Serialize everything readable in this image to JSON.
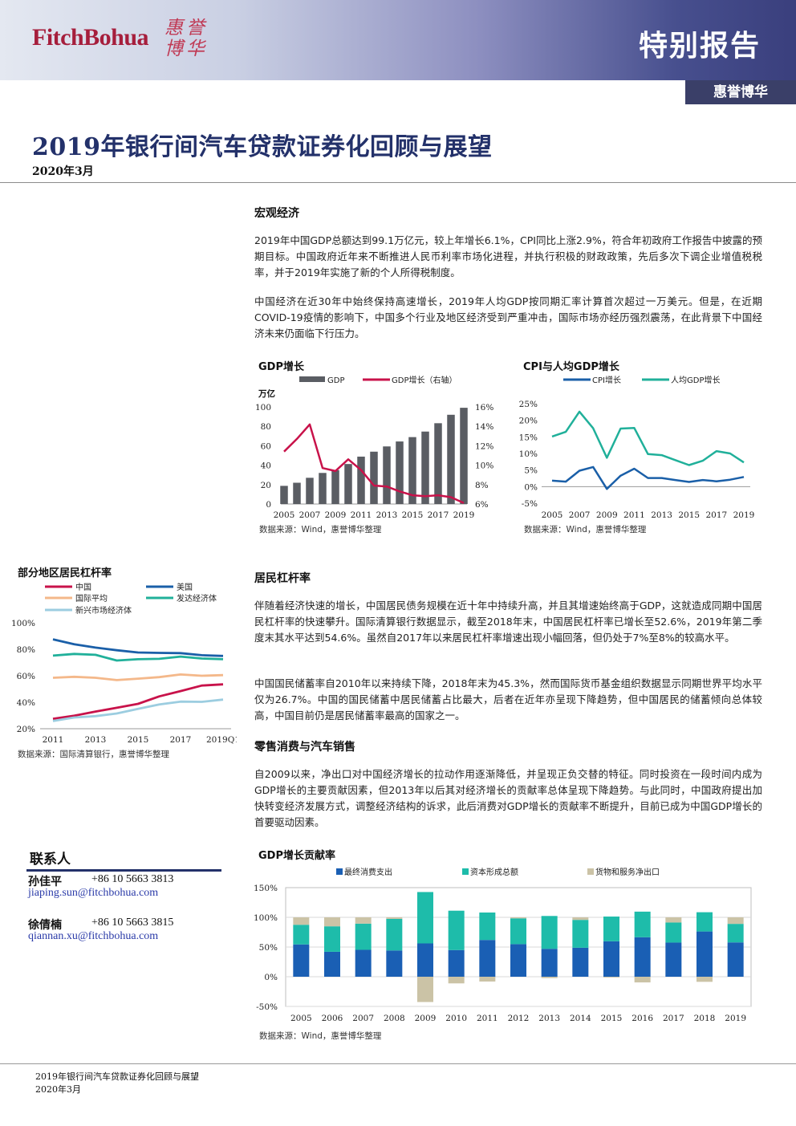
{
  "header": {
    "logo_text": "FitchBohua",
    "logo_cn": "惠誉博华",
    "report_type": "特别报告",
    "brand_tab": "惠誉博华"
  },
  "title": "2019年银行间汽车贷款证券化回顾与展望",
  "date": "2020年3月",
  "sections": {
    "macro": {
      "title": "宏观经济",
      "p1": "2019年中国GDP总额达到99.1万亿元，较上年增长6.1%，CPI同比上涨2.9%，符合年初政府工作报告中披露的预期目标。中国政府近年来不断推进人民币利率市场化进程，并执行积极的财政政策，先后多次下调企业增值税税率，并于2019年实施了新的个人所得税制度。",
      "p2": "中国经济在近30年中始终保持高速增长，2019年人均GDP按同期汇率计算首次超过一万美元。但是，在近期COVID-19疫情的影响下，中国多个行业及地区经济受到严重冲击，国际市场亦经历强烈震荡，在此背景下中国经济未来仍面临下行压力。"
    },
    "leverage": {
      "title": "居民杠杆率",
      "p1": "伴随着经济快速的增长，中国居民债务规模在近十年中持续升高，并且其增速始终高于GDP，这就造成同期中国居民杠杆率的快速攀升。国际清算银行数据显示，截至2018年末，中国居民杠杆率已增长至52.6%，2019年第二季度末其水平达到54.6%。虽然自2017年以来居民杠杆率增速出现小幅回落，但仍处于7%至8%的较高水平。",
      "p2": "中国国民储蓄率自2010年以来持续下降，2018年末为45.3%，然而国际货币基金组织数据显示同期世界平均水平仅为26.7%。中国的国民储蓄中居民储蓄占比最大，后者在近年亦呈现下降趋势，但中国居民的储蓄倾向总体较高，中国目前仍是居民储蓄率最高的国家之一。"
    },
    "retail": {
      "title": "零售消费与汽车销售",
      "p1": "自2009以来，净出口对中国经济增长的拉动作用逐渐降低，并呈现正负交替的特征。同时投资在一段时间内成为GDP增长的主要贡献因素，但2013年以后其对经济增长的贡献率总体呈现下降趋势。与此同时，中国政府提出加快转变经济发展方式，调整经济结构的诉求，此后消费对GDP增长的贡献率不断提升，目前已成为中国GDP增长的首要驱动因素。"
    }
  },
  "charts": {
    "gdp": {
      "title": "GDP增长",
      "legend_gdp": "GDP",
      "legend_growth": "GDP增长（右轴）",
      "left_unit": "万亿",
      "left_ticks": [
        "100",
        "80",
        "60",
        "40",
        "20",
        "0"
      ],
      "right_ticks": [
        "16%",
        "14%",
        "12%",
        "10%",
        "8%",
        "6%"
      ],
      "x_ticks": [
        "2005",
        "2007",
        "2009",
        "2011",
        "2013",
        "2015",
        "2017",
        "2019"
      ],
      "source": "数据来源：Wind，惠誉博华整理"
    },
    "cpi": {
      "title": "CPI与人均GDP增长",
      "legend_cpi": "CPI增长",
      "legend_pgdp": "人均GDP增长",
      "y_ticks": [
        "25%",
        "20%",
        "15%",
        "10%",
        "5%",
        "0%",
        "-5%"
      ],
      "x_ticks": [
        "2005",
        "2007",
        "2009",
        "2011",
        "2013",
        "2015",
        "2017",
        "2019"
      ],
      "source": "数据来源：Wind，惠誉博华整理"
    },
    "lev": {
      "title": "部分地区居民杠杆率",
      "legend": [
        "中国",
        "美国",
        "国际平均",
        "发达经济体",
        "新兴市场经济体"
      ],
      "y_ticks": [
        "100%",
        "80%",
        "60%",
        "40%",
        "20%"
      ],
      "x_ticks": [
        "2011",
        "2013",
        "2015",
        "2017",
        "2019Q1"
      ],
      "source": "数据来源：国际清算银行，惠誉博华整理"
    },
    "contrib": {
      "title": "GDP增长贡献率",
      "legend": [
        "最终消费支出",
        "资本形成总额",
        "货物和服务净出口"
      ],
      "y_ticks": [
        "150%",
        "100%",
        "50%",
        "0%",
        "-50%"
      ],
      "x_ticks": [
        "2005",
        "2006",
        "2007",
        "2008",
        "2009",
        "2010",
        "2011",
        "2012",
        "2013",
        "2014",
        "2015",
        "2016",
        "2017",
        "2018",
        "2019"
      ],
      "source": "数据来源：Wind，惠誉博华整理"
    }
  },
  "chart_data": [
    {
      "type": "bar",
      "title": "GDP增长",
      "ylabel": "万亿",
      "categories": [
        "2005",
        "2006",
        "2007",
        "2008",
        "2009",
        "2010",
        "2011",
        "2012",
        "2013",
        "2014",
        "2015",
        "2016",
        "2017",
        "2018",
        "2019"
      ],
      "series": [
        {
          "name": "GDP",
          "type": "bar",
          "axis": "left",
          "values": [
            18.7,
            21.9,
            27.0,
            32.0,
            34.9,
            41.2,
            48.8,
            53.9,
            59.3,
            64.4,
            68.9,
            74.6,
            83.2,
            91.9,
            99.1
          ]
        },
        {
          "name": "GDP增长（右轴）",
          "type": "line",
          "axis": "right",
          "values": [
            11.4,
            12.7,
            14.2,
            9.7,
            9.4,
            10.6,
            9.5,
            7.9,
            7.8,
            7.3,
            6.9,
            6.8,
            6.9,
            6.7,
            6.1
          ]
        }
      ],
      "ylim": [
        0,
        100
      ],
      "y2lim": [
        6,
        16
      ]
    },
    {
      "type": "line",
      "title": "CPI与人均GDP增长",
      "categories": [
        "2005",
        "2006",
        "2007",
        "2008",
        "2009",
        "2010",
        "2011",
        "2012",
        "2013",
        "2014",
        "2015",
        "2016",
        "2017",
        "2018",
        "2019"
      ],
      "series": [
        {
          "name": "CPI增长",
          "values": [
            1.8,
            1.5,
            4.8,
            5.9,
            -0.7,
            3.3,
            5.4,
            2.6,
            2.6,
            2.0,
            1.4,
            2.0,
            1.6,
            2.1,
            2.9
          ]
        },
        {
          "name": "人均GDP增长",
          "values": [
            15.1,
            16.5,
            22.6,
            17.6,
            8.7,
            17.5,
            17.7,
            9.8,
            9.5,
            8.0,
            6.5,
            7.8,
            10.7,
            10.0,
            7.3
          ]
        }
      ],
      "ylim": [
        -5,
        25
      ]
    },
    {
      "type": "line",
      "title": "部分地区居民杠杆率",
      "categories": [
        "2011",
        "2012",
        "2013",
        "2014",
        "2015",
        "2016",
        "2017",
        "2018",
        "2019Q1"
      ],
      "series": [
        {
          "name": "中国",
          "values": [
            27.5,
            29.8,
            33.0,
            35.8,
            38.8,
            44.4,
            48.4,
            52.6,
            53.5
          ]
        },
        {
          "name": "美国",
          "values": [
            87.5,
            83.8,
            81.3,
            79.3,
            77.6,
            77.3,
            77.1,
            75.5,
            75.0
          ]
        },
        {
          "name": "国际平均",
          "values": [
            58.5,
            59.2,
            58.5,
            56.7,
            57.8,
            59.0,
            61.0,
            60.0,
            60.5
          ]
        },
        {
          "name": "发达经济体",
          "values": [
            75.2,
            76.5,
            75.8,
            71.5,
            72.5,
            72.8,
            74.5,
            73.0,
            72.5
          ]
        },
        {
          "name": "新兴市场经济体",
          "values": [
            25.8,
            28.5,
            29.5,
            31.5,
            35.0,
            38.3,
            40.5,
            40.3,
            42.0
          ]
        }
      ],
      "ylim": [
        20,
        100
      ]
    },
    {
      "type": "bar",
      "stacked": true,
      "title": "GDP增长贡献率",
      "categories": [
        "2005",
        "2006",
        "2007",
        "2008",
        "2009",
        "2010",
        "2011",
        "2012",
        "2013",
        "2014",
        "2015",
        "2016",
        "2017",
        "2018",
        "2019"
      ],
      "series": [
        {
          "name": "最终消费支出",
          "values": [
            54.4,
            42.0,
            45.3,
            44.2,
            56.1,
            44.9,
            61.9,
            54.9,
            47.0,
            48.8,
            59.7,
            66.5,
            57.5,
            76.2,
            57.8
          ]
        },
        {
          "name": "资本形成总额",
          "values": [
            33.1,
            42.9,
            44.1,
            53.2,
            86.5,
            66.3,
            46.2,
            43.4,
            55.3,
            46.9,
            41.6,
            43.1,
            33.8,
            32.4,
            31.2
          ]
        },
        {
          "name": "货物和服务净出口",
          "values": [
            12.5,
            15.1,
            10.6,
            2.6,
            -42.6,
            -11.2,
            -8.1,
            1.7,
            -2.3,
            4.3,
            -1.3,
            -9.6,
            8.7,
            -8.6,
            11.0
          ]
        }
      ],
      "ylim": [
        -50,
        150
      ]
    }
  ],
  "contacts": {
    "title": "联系人",
    "people": [
      {
        "name": "孙佳平",
        "phone": "+86 10 5663 3813",
        "email": "jiaping.sun@fitchbohua.com"
      },
      {
        "name": "徐倩楠",
        "phone": "+86 10 5663 3815",
        "email": "qiannan.xu@fitchbohua.com"
      }
    ]
  },
  "footer": {
    "line1": "2019年银行间汽车贷款证券化回顾与展望",
    "line2": "2020年3月"
  },
  "colors": {
    "navy": "#23316a",
    "gdp_bar": "#5a5d63",
    "gdp_line": "#c8124a",
    "cpi_line": "#1a5fa8",
    "pgdp_line": "#20b09a",
    "china": "#c8124a",
    "us": "#1a5fa8",
    "intl": "#f4b88a",
    "dev": "#20b09a",
    "em": "#9ccde0",
    "consume": "#1a5fb4",
    "capital": "#1ebcaa",
    "netexp": "#cbc3a6"
  }
}
